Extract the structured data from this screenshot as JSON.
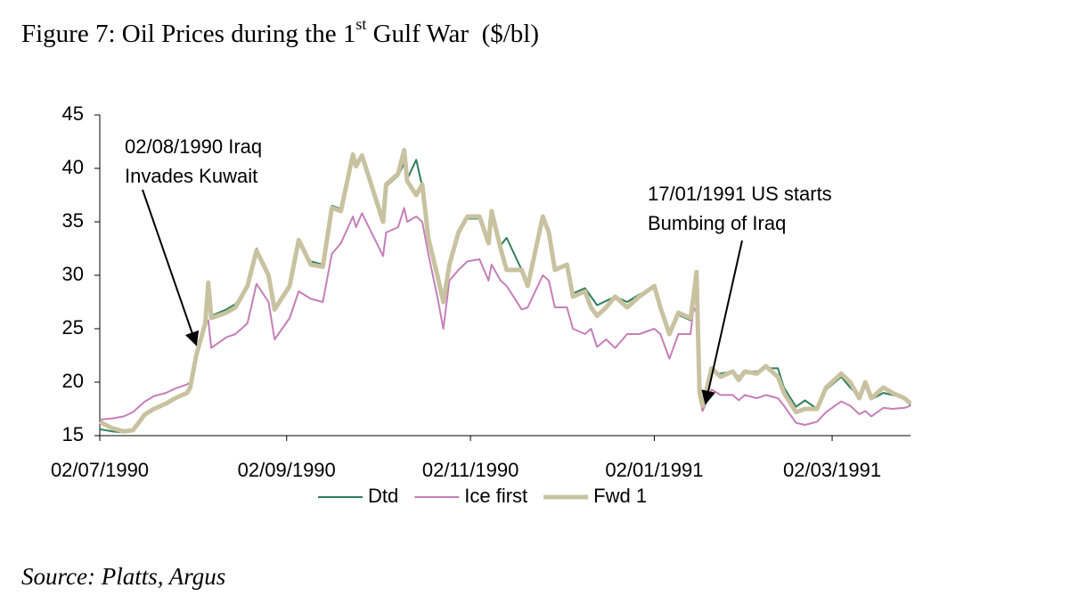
{
  "chart_data": {
    "type": "line",
    "title": [
      "Figure 7: Oil Prices during the 1",
      "st",
      " Gulf War  ($/bl)"
    ],
    "source": "Source: Platts, Argus",
    "x": [
      "1990-07-02",
      "1990-07-06",
      "1990-07-10",
      "1990-07-13",
      "1990-07-17",
      "1990-07-20",
      "1990-07-24",
      "1990-07-27",
      "1990-07-31",
      "1990-08-01",
      "1990-08-03",
      "1990-08-06",
      "1990-08-07",
      "1990-08-08",
      "1990-08-13",
      "1990-08-16",
      "1990-08-20",
      "1990-08-23",
      "1990-08-27",
      "1990-08-29",
      "1990-09-03",
      "1990-09-06",
      "1990-09-10",
      "1990-09-14",
      "1990-09-17",
      "1990-09-20",
      "1990-09-24",
      "1990-09-25",
      "1990-09-27",
      "1990-10-04",
      "1990-10-05",
      "1990-10-09",
      "1990-10-11",
      "1990-10-12",
      "1990-10-15",
      "1990-10-17",
      "1990-10-19",
      "1990-10-22",
      "1990-10-24",
      "1990-10-26",
      "1990-10-29",
      "1990-11-01",
      "1990-11-05",
      "1990-11-08",
      "1990-11-09",
      "1990-11-12",
      "1990-11-14",
      "1990-11-19",
      "1990-11-21",
      "1990-11-26",
      "1990-11-28",
      "1990-11-30",
      "1990-12-04",
      "1990-12-06",
      "1990-12-10",
      "1990-12-12",
      "1990-12-14",
      "1990-12-17",
      "1990-12-20",
      "1990-12-24",
      "1990-12-28",
      "1991-01-02",
      "1991-01-04",
      "1991-01-07",
      "1991-01-10",
      "1991-01-14",
      "1991-01-15",
      "1991-01-16",
      "1991-01-17",
      "1991-01-18",
      "1991-01-21",
      "1991-01-24",
      "1991-01-28",
      "1991-01-30",
      "1991-02-01",
      "1991-02-05",
      "1991-02-08",
      "1991-02-12",
      "1991-02-14",
      "1991-02-18",
      "1991-02-21",
      "1991-02-25",
      "1991-02-28",
      "1991-03-05",
      "1991-03-08",
      "1991-03-11",
      "1991-03-13",
      "1991-03-15",
      "1991-03-19",
      "1991-03-22",
      "1991-03-26",
      "1991-03-28"
    ],
    "series": [
      {
        "name": "Dtd",
        "color": "#2e7d5b",
        "width": 2,
        "values": [
          15.6,
          15.4,
          15.3,
          15.6,
          17.0,
          17.6,
          18.0,
          18.6,
          19.0,
          19.4,
          22.4,
          25.6,
          29.0,
          26.2,
          26.8,
          27.3,
          29.0,
          32.5,
          30.0,
          26.8,
          29.0,
          33.0,
          31.3,
          31.0,
          36.5,
          36.2,
          41.0,
          40.5,
          41.3,
          35.3,
          38.3,
          39.3,
          40.5,
          39.0,
          40.8,
          38.3,
          33.5,
          30.5,
          28.0,
          31.0,
          34.0,
          35.3,
          35.3,
          33.3,
          35.8,
          32.8,
          33.5,
          30.5,
          29.0,
          35.3,
          34.0,
          30.5,
          31.0,
          28.3,
          28.8,
          28.0,
          27.2,
          27.6,
          28.0,
          27.5,
          28.2,
          28.8,
          27.0,
          24.5,
          26.3,
          25.8,
          27.8,
          30.0,
          19.2,
          17.5,
          21.0,
          20.8,
          21.0,
          20.5,
          21.0,
          21.0,
          21.3,
          21.3,
          19.5,
          17.7,
          18.3,
          17.5,
          19.3,
          20.5,
          19.5,
          18.7,
          19.8,
          18.4,
          19.0,
          18.8,
          18.6,
          17.8
        ]
      },
      {
        "name": "Ice first",
        "color": "#c47fb8",
        "width": 2,
        "values": [
          16.5,
          16.6,
          16.8,
          17.2,
          18.2,
          18.7,
          19.0,
          19.4,
          19.8,
          20.0,
          22.5,
          25.5,
          25.8,
          23.2,
          24.2,
          24.5,
          25.5,
          29.2,
          27.5,
          24.0,
          26.0,
          28.5,
          27.8,
          27.5,
          32.0,
          33.0,
          35.5,
          34.5,
          35.8,
          31.8,
          34.0,
          34.5,
          36.3,
          35.0,
          35.5,
          35.0,
          32.0,
          28.0,
          25.0,
          29.5,
          30.5,
          31.3,
          31.5,
          29.5,
          31.0,
          29.5,
          29.0,
          26.8,
          27.0,
          30.0,
          29.5,
          27.0,
          27.0,
          25.0,
          24.5,
          25.0,
          23.3,
          24.0,
          23.2,
          24.5,
          24.5,
          25.0,
          24.5,
          22.2,
          24.5,
          24.5,
          27.0,
          26.5,
          18.5,
          17.3,
          19.3,
          18.8,
          18.8,
          18.3,
          18.8,
          18.5,
          18.8,
          18.5,
          17.8,
          16.2,
          16.0,
          16.3,
          17.2,
          18.2,
          17.8,
          17.0,
          17.3,
          16.8,
          17.6,
          17.5,
          17.6,
          17.8
        ]
      },
      {
        "name": "Fwd 1",
        "color": "#c8c2a0",
        "width": 5,
        "values": [
          16.3,
          15.7,
          15.4,
          15.5,
          17.0,
          17.5,
          18.0,
          18.5,
          19.0,
          19.5,
          22.5,
          25.5,
          29.3,
          26.0,
          26.5,
          27.0,
          29.0,
          32.3,
          30.0,
          26.8,
          29.0,
          33.3,
          31.0,
          30.8,
          36.3,
          36.0,
          41.3,
          40.2,
          41.2,
          35.0,
          38.5,
          39.5,
          41.7,
          38.8,
          37.5,
          38.5,
          33.5,
          30.0,
          27.5,
          31.0,
          34.0,
          35.5,
          35.5,
          33.0,
          36.0,
          32.5,
          30.5,
          30.5,
          29.0,
          35.5,
          34.0,
          30.5,
          31.0,
          28.0,
          28.5,
          27.0,
          26.2,
          27.0,
          28.0,
          27.0,
          28.0,
          29.0,
          27.0,
          24.5,
          26.5,
          26.0,
          28.0,
          30.3,
          19.0,
          17.8,
          21.3,
          20.5,
          21.0,
          20.2,
          21.0,
          20.8,
          21.5,
          20.5,
          19.0,
          17.2,
          17.5,
          17.5,
          19.5,
          20.8,
          20.0,
          18.5,
          20.0,
          18.5,
          19.5,
          19.0,
          18.5,
          18.0
        ]
      }
    ],
    "xlim": [
      "1990-07-02",
      "1991-03-28"
    ],
    "xticks": [
      {
        "value": "1990-07-02",
        "label": "02/07/1990"
      },
      {
        "value": "1990-09-02",
        "label": "02/09/1990"
      },
      {
        "value": "1990-11-02",
        "label": "02/11/1990"
      },
      {
        "value": "1991-01-02",
        "label": "02/01/1991"
      },
      {
        "value": "1991-03-02",
        "label": "02/03/1991"
      }
    ],
    "ylim": [
      15,
      45
    ],
    "yticks": [
      15,
      20,
      25,
      30,
      35,
      40,
      45
    ],
    "legend": "bottom",
    "annotations": [
      {
        "lines": [
          "02/08/1990 Iraq",
          "Invades Kuwait"
        ],
        "arrow_to": {
          "x": "1990-08-03",
          "y": 23.5
        }
      },
      {
        "lines": [
          "17/01/1991 US starts",
          "Bumbing of Iraq"
        ],
        "arrow_to": {
          "x": "1991-01-19",
          "y": 18
        }
      }
    ]
  }
}
